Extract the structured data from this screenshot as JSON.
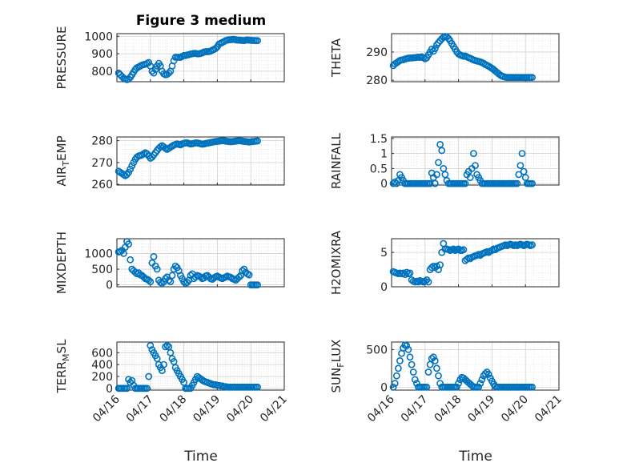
{
  "figure": {
    "title": "Figure 3 medium",
    "marker_color": "#0072BD",
    "x_ticks": [
      "04/16",
      "04/17",
      "04/18",
      "04/19",
      "04/20",
      "04/21"
    ],
    "x_label": "Time"
  },
  "chart_data": [
    {
      "type": "scatter",
      "ylabel": "PRESSURE",
      "yticks": [
        800,
        900,
        1000
      ],
      "ylim": [
        740,
        1015
      ],
      "x": [
        0.05,
        0.1,
        0.15,
        0.2,
        0.25,
        0.3,
        0.35,
        0.4,
        0.45,
        0.5,
        0.55,
        0.6,
        0.65,
        0.7,
        0.75,
        0.8,
        0.85,
        0.9,
        0.95,
        1.0,
        1.05,
        1.1,
        1.15,
        1.2,
        1.25,
        1.3,
        1.35,
        1.4,
        1.45,
        1.5,
        1.55,
        1.6,
        1.65,
        1.7,
        1.75,
        1.8,
        1.85,
        1.9,
        1.95,
        2.0,
        2.05,
        2.1,
        2.15,
        2.2,
        2.25,
        2.3,
        2.35,
        2.4,
        2.45,
        2.5,
        2.55,
        2.6,
        2.65,
        2.7,
        2.75,
        2.8,
        2.85,
        2.9,
        2.95,
        3.0,
        3.05,
        3.1,
        3.15,
        3.2,
        3.25,
        3.3,
        3.35,
        3.4,
        3.45,
        3.5,
        3.55,
        3.6,
        3.65,
        3.7,
        3.75,
        3.8,
        3.85,
        3.9,
        3.95,
        4.0,
        4.05,
        4.1,
        4.15,
        4.2
      ],
      "y": [
        790,
        780,
        770,
        760,
        755,
        752,
        755,
        765,
        780,
        795,
        810,
        820,
        825,
        830,
        835,
        838,
        840,
        845,
        850,
        830,
        800,
        790,
        810,
        830,
        845,
        830,
        800,
        785,
        780,
        782,
        790,
        800,
        830,
        860,
        880,
        880,
        880,
        880,
        885,
        890,
        890,
        893,
        895,
        898,
        900,
        902,
        902,
        900,
        900,
        902,
        905,
        910,
        912,
        912,
        913,
        915,
        920,
        925,
        930,
        940,
        955,
        960,
        965,
        970,
        975,
        978,
        980,
        980,
        982,
        982,
        980,
        978,
        978,
        977,
        976,
        975,
        978,
        979,
        978,
        977,
        976,
        976,
        975,
        975
      ]
    },
    {
      "type": "scatter",
      "ylabel": "THETA",
      "yticks": [
        280,
        290
      ],
      "ylim": [
        279.5,
        296.5
      ],
      "x": [
        0.05,
        0.1,
        0.15,
        0.2,
        0.25,
        0.3,
        0.35,
        0.4,
        0.45,
        0.5,
        0.55,
        0.6,
        0.65,
        0.7,
        0.75,
        0.8,
        0.85,
        0.9,
        0.95,
        1.0,
        1.05,
        1.1,
        1.15,
        1.2,
        1.25,
        1.3,
        1.35,
        1.4,
        1.45,
        1.5,
        1.55,
        1.6,
        1.65,
        1.7,
        1.75,
        1.8,
        1.85,
        1.9,
        1.95,
        2.0,
        2.05,
        2.1,
        2.15,
        2.2,
        2.25,
        2.3,
        2.35,
        2.4,
        2.45,
        2.5,
        2.55,
        2.6,
        2.65,
        2.7,
        2.75,
        2.8,
        2.85,
        2.9,
        2.95,
        3.0,
        3.05,
        3.1,
        3.15,
        3.2,
        3.25,
        3.3,
        3.35,
        3.4,
        3.45,
        3.5,
        3.55,
        3.6,
        3.65,
        3.7,
        3.75,
        3.8,
        3.85,
        3.9,
        3.95,
        4.0,
        4.05,
        4.1,
        4.15,
        4.2
      ],
      "y": [
        285.2,
        285.8,
        286.2,
        286.6,
        287.0,
        287.2,
        287.3,
        287.5,
        287.7,
        287.8,
        287.9,
        287.9,
        288.0,
        288.0,
        288.1,
        288.2,
        288.1,
        288.3,
        288.0,
        287.6,
        288.0,
        289.0,
        290.0,
        291.0,
        290.3,
        291.2,
        292.5,
        293.3,
        294.0,
        294.7,
        295.2,
        295.5,
        295.3,
        294.8,
        294.0,
        293.0,
        292.0,
        291.0,
        290.0,
        289.3,
        289.0,
        288.7,
        288.5,
        288.6,
        288.3,
        288.0,
        287.8,
        287.5,
        287.2,
        287.0,
        286.8,
        286.7,
        286.5,
        286.3,
        286.0,
        285.6,
        285.3,
        285.0,
        284.6,
        284.2,
        283.8,
        283.3,
        282.8,
        282.3,
        281.8,
        281.5,
        281.3,
        281.1,
        281.0,
        281.0,
        281.0,
        281.0,
        281.0,
        281.0,
        281.0,
        281.0,
        281.0,
        281.0,
        281.0,
        281.0,
        281.0,
        281.0,
        281.0,
        281.0
      ]
    },
    {
      "type": "scatter",
      "ylabel": "AIR_TEMP",
      "yticks": [
        260,
        270,
        280
      ],
      "ylim": [
        259.7,
        281.7
      ],
      "x": [
        0.05,
        0.1,
        0.15,
        0.2,
        0.25,
        0.3,
        0.35,
        0.4,
        0.45,
        0.5,
        0.55,
        0.6,
        0.65,
        0.7,
        0.75,
        0.8,
        0.85,
        0.9,
        0.95,
        1.0,
        1.05,
        1.1,
        1.15,
        1.2,
        1.25,
        1.3,
        1.35,
        1.4,
        1.45,
        1.5,
        1.55,
        1.6,
        1.65,
        1.7,
        1.75,
        1.8,
        1.85,
        1.9,
        1.95,
        2.0,
        2.05,
        2.1,
        2.15,
        2.2,
        2.25,
        2.3,
        2.35,
        2.4,
        2.45,
        2.5,
        2.55,
        2.6,
        2.65,
        2.7,
        2.75,
        2.8,
        2.85,
        2.9,
        2.95,
        3.0,
        3.05,
        3.1,
        3.15,
        3.2,
        3.25,
        3.3,
        3.35,
        3.4,
        3.45,
        3.5,
        3.55,
        3.6,
        3.65,
        3.7,
        3.75,
        3.8,
        3.85,
        3.9,
        3.95,
        4.0,
        4.05,
        4.1,
        4.15,
        4.2
      ],
      "y": [
        266,
        265.5,
        265,
        264.5,
        264,
        264.5,
        265.5,
        267,
        268.5,
        270,
        271.5,
        272.5,
        273,
        273.2,
        273.5,
        274,
        274.5,
        274,
        273,
        272,
        272.5,
        273.5,
        274.5,
        275.5,
        276.5,
        277.2,
        277.7,
        277.2,
        276.5,
        276,
        276.5,
        277,
        277.5,
        278,
        278.3,
        278.5,
        278.3,
        278.1,
        278.5,
        278.8,
        279,
        279,
        278.7,
        278.5,
        278.6,
        278.8,
        279,
        279,
        278.8,
        278.6,
        278.4,
        278.5,
        278.7,
        278.9,
        279,
        279.2,
        279.3,
        279.5,
        279.6,
        279.7,
        279.8,
        279.9,
        280,
        280,
        279.8,
        279.7,
        279.6,
        279.5,
        279.6,
        279.7,
        279.8,
        279.9,
        280,
        279.9,
        279.8,
        279.7,
        279.6,
        279.5,
        279.4,
        279.5,
        279.6,
        279.7,
        279.8,
        279.9
      ]
    },
    {
      "type": "scatter",
      "ylabel": "RAINFALL",
      "yticks": [
        0,
        0.5,
        1,
        1.5
      ],
      "ylim": [
        -0.05,
        1.55
      ],
      "x": [
        0.05,
        0.1,
        0.15,
        0.2,
        0.25,
        0.3,
        0.35,
        0.4,
        0.45,
        0.5,
        0.55,
        0.6,
        0.65,
        0.7,
        0.75,
        0.8,
        0.85,
        0.9,
        0.95,
        1.0,
        1.05,
        1.1,
        1.15,
        1.2,
        1.25,
        1.3,
        1.35,
        1.4,
        1.45,
        1.5,
        1.55,
        1.6,
        1.65,
        1.7,
        1.75,
        1.8,
        1.85,
        1.9,
        1.95,
        2.0,
        2.05,
        2.1,
        2.15,
        2.2,
        2.25,
        2.3,
        2.35,
        2.4,
        2.45,
        2.5,
        2.55,
        2.6,
        2.65,
        2.7,
        2.75,
        2.8,
        2.85,
        2.9,
        2.95,
        3.0,
        3.05,
        3.1,
        3.15,
        3.2,
        3.25,
        3.3,
        3.35,
        3.4,
        3.45,
        3.5,
        3.55,
        3.6,
        3.65,
        3.7,
        3.75,
        3.8,
        3.85,
        3.9,
        3.95,
        4.0,
        4.05,
        4.1,
        4.15,
        4.2
      ],
      "y": [
        0,
        0.05,
        0,
        0.1,
        0.3,
        0.2,
        0.1,
        0,
        0,
        0,
        0,
        0,
        0,
        0,
        0,
        0,
        0,
        0,
        0,
        0,
        0,
        0,
        0,
        0.35,
        0.2,
        0,
        0.3,
        0.7,
        1.3,
        1.1,
        0.5,
        0.3,
        0.1,
        0,
        0,
        0,
        0,
        0,
        0,
        0,
        0,
        0,
        0,
        0,
        0.3,
        0.4,
        0.2,
        0.5,
        1.0,
        0.6,
        0.3,
        0.2,
        0.1,
        0,
        0,
        0,
        0,
        0,
        0,
        0,
        0,
        0,
        0,
        0,
        0,
        0,
        0,
        0,
        0,
        0,
        0,
        0,
        0,
        0,
        0,
        0.3,
        0.6,
        1.0,
        0.4,
        0.2,
        0,
        0,
        0,
        0
      ]
    },
    {
      "type": "scatter",
      "ylabel": "MIXDEPTH",
      "yticks": [
        0,
        500,
        1000
      ],
      "ylim": [
        -60,
        1470
      ],
      "x": [
        0.05,
        0.1,
        0.15,
        0.2,
        0.25,
        0.3,
        0.35,
        0.4,
        0.45,
        0.5,
        0.55,
        0.6,
        0.65,
        0.7,
        0.75,
        0.8,
        0.85,
        0.9,
        0.95,
        1.0,
        1.05,
        1.1,
        1.15,
        1.2,
        1.25,
        1.3,
        1.35,
        1.4,
        1.45,
        1.5,
        1.55,
        1.6,
        1.65,
        1.7,
        1.75,
        1.8,
        1.85,
        1.9,
        1.95,
        2.0,
        2.05,
        2.1,
        2.15,
        2.2,
        2.25,
        2.3,
        2.35,
        2.4,
        2.45,
        2.5,
        2.55,
        2.6,
        2.65,
        2.7,
        2.75,
        2.8,
        2.85,
        2.9,
        2.95,
        3.0,
        3.05,
        3.1,
        3.15,
        3.2,
        3.25,
        3.3,
        3.35,
        3.4,
        3.45,
        3.5,
        3.55,
        3.6,
        3.65,
        3.7,
        3.75,
        3.8,
        3.85,
        3.9,
        3.95,
        4.0,
        4.05,
        4.1,
        4.15,
        4.2
      ],
      "y": [
        1050,
        1060,
        1100,
        1000,
        1200,
        1380,
        1300,
        800,
        500,
        450,
        400,
        350,
        380,
        320,
        300,
        250,
        200,
        180,
        150,
        100,
        700,
        900,
        600,
        500,
        150,
        80,
        50,
        100,
        200,
        250,
        150,
        100,
        300,
        500,
        600,
        550,
        450,
        300,
        200,
        100,
        50,
        80,
        150,
        300,
        350,
        200,
        250,
        300,
        280,
        250,
        200,
        220,
        280,
        300,
        250,
        200,
        180,
        220,
        260,
        280,
        250,
        220,
        200,
        230,
        250,
        280,
        260,
        240,
        200,
        180,
        150,
        200,
        250,
        300,
        450,
        500,
        400,
        350,
        320,
        0,
        0,
        0,
        0,
        0
      ]
    },
    {
      "type": "scatter",
      "ylabel": "H2OMIXRA",
      "yticks": [
        0,
        5
      ],
      "ylim": [
        0,
        7
      ],
      "x": [
        0.05,
        0.1,
        0.15,
        0.2,
        0.25,
        0.3,
        0.35,
        0.4,
        0.45,
        0.5,
        0.55,
        0.6,
        0.65,
        0.7,
        0.75,
        0.8,
        0.85,
        0.9,
        0.95,
        1.0,
        1.05,
        1.1,
        1.15,
        1.2,
        1.25,
        1.3,
        1.35,
        1.4,
        1.45,
        1.5,
        1.55,
        1.6,
        1.65,
        1.7,
        1.75,
        1.8,
        1.85,
        1.9,
        1.95,
        2.0,
        2.05,
        2.1,
        2.15,
        2.2,
        2.25,
        2.3,
        2.35,
        2.4,
        2.45,
        2.5,
        2.55,
        2.6,
        2.65,
        2.7,
        2.75,
        2.8,
        2.85,
        2.9,
        2.95,
        3.0,
        3.05,
        3.1,
        3.15,
        3.2,
        3.25,
        3.3,
        3.35,
        3.4,
        3.45,
        3.5,
        3.55,
        3.6,
        3.65,
        3.7,
        3.75,
        3.8,
        3.85,
        3.9,
        3.95,
        4.0,
        4.05,
        4.1,
        4.15,
        4.2
      ],
      "y": [
        2.2,
        2.1,
        2.0,
        1.9,
        2.0,
        1.9,
        2.0,
        1.8,
        2.1,
        1.9,
        2.0,
        1.0,
        0.8,
        0.7,
        0.8,
        0.7,
        0.9,
        0.8,
        0.7,
        0.8,
        1.0,
        0.7,
        2.5,
        2.8,
        3.0,
        2.8,
        3.0,
        2.5,
        3.2,
        5.0,
        6.3,
        5.5,
        5.5,
        5.4,
        5.3,
        5.4,
        5.5,
        5.3,
        5.4,
        5.5,
        5.3,
        5.3,
        5.4,
        3.8,
        4.0,
        4.2,
        4.1,
        4.3,
        4.4,
        4.5,
        4.6,
        4.7,
        4.6,
        4.8,
        4.9,
        5.0,
        5.1,
        5.0,
        5.2,
        5.3,
        5.5,
        5.4,
        5.6,
        5.7,
        5.8,
        5.9,
        6.0,
        6.1,
        6.0,
        6.1,
        6.2,
        6.1,
        6.0,
        6.1,
        6.0,
        6.1,
        6.2,
        6.1,
        6.0,
        6.1,
        6.2,
        6.1,
        6.0,
        6.1
      ]
    },
    {
      "type": "scatter",
      "ylabel": "TERR_MSL",
      "yticks": [
        0,
        200,
        400,
        600
      ],
      "ylim": [
        -30,
        780
      ],
      "x": [
        0.05,
        0.1,
        0.15,
        0.2,
        0.25,
        0.3,
        0.35,
        0.4,
        0.45,
        0.5,
        0.55,
        0.6,
        0.65,
        0.7,
        0.75,
        0.8,
        0.85,
        0.9,
        0.95,
        1.0,
        1.05,
        1.1,
        1.15,
        1.2,
        1.25,
        1.3,
        1.35,
        1.4,
        1.45,
        1.5,
        1.55,
        1.6,
        1.65,
        1.7,
        1.75,
        1.8,
        1.85,
        1.9,
        1.95,
        2.0,
        2.05,
        2.1,
        2.15,
        2.2,
        2.25,
        2.3,
        2.35,
        2.4,
        2.45,
        2.5,
        2.55,
        2.6,
        2.65,
        2.7,
        2.75,
        2.8,
        2.85,
        2.9,
        2.95,
        3.0,
        3.05,
        3.1,
        3.15,
        3.2,
        3.25,
        3.3,
        3.35,
        3.4,
        3.45,
        3.5,
        3.55,
        3.6,
        3.65,
        3.7,
        3.75,
        3.8,
        3.85,
        3.9,
        3.95,
        4.0,
        4.05,
        4.1,
        4.15,
        4.2
      ],
      "y": [
        0,
        0,
        0,
        0,
        0,
        0,
        150,
        100,
        130,
        50,
        0,
        0,
        0,
        0,
        0,
        0,
        0,
        0,
        200,
        720,
        650,
        600,
        550,
        500,
        400,
        350,
        300,
        400,
        700,
        720,
        700,
        600,
        500,
        450,
        350,
        300,
        250,
        200,
        150,
        100,
        0,
        0,
        0,
        0,
        50,
        100,
        150,
        200,
        180,
        160,
        140,
        120,
        110,
        100,
        90,
        80,
        70,
        60,
        60,
        50,
        50,
        40,
        40,
        30,
        30,
        20,
        20,
        20,
        20,
        20,
        20,
        20,
        20,
        20,
        20,
        20,
        20,
        20,
        20,
        20,
        20,
        20,
        20,
        20
      ]
    },
    {
      "type": "scatter",
      "ylabel": "SUN_FLUX",
      "yticks": [
        0,
        500
      ],
      "ylim": [
        -40,
        600
      ],
      "x": [
        0.05,
        0.1,
        0.15,
        0.2,
        0.25,
        0.3,
        0.35,
        0.4,
        0.45,
        0.5,
        0.55,
        0.6,
        0.65,
        0.7,
        0.75,
        0.8,
        0.85,
        0.9,
        0.95,
        1.0,
        1.05,
        1.1,
        1.15,
        1.2,
        1.25,
        1.3,
        1.35,
        1.4,
        1.45,
        1.5,
        1.55,
        1.6,
        1.65,
        1.7,
        1.75,
        1.8,
        1.85,
        1.9,
        1.95,
        2.0,
        2.05,
        2.1,
        2.15,
        2.2,
        2.25,
        2.3,
        2.35,
        2.4,
        2.45,
        2.5,
        2.55,
        2.6,
        2.65,
        2.7,
        2.75,
        2.8,
        2.85,
        2.9,
        2.95,
        3.0,
        3.05,
        3.1,
        3.15,
        3.2,
        3.25,
        3.3,
        3.35,
        3.4,
        3.45,
        3.5,
        3.55,
        3.6,
        3.65,
        3.7,
        3.75,
        3.8,
        3.85,
        3.9,
        3.95,
        4.0,
        4.05,
        4.1,
        4.15,
        4.2
      ],
      "y": [
        0,
        50,
        150,
        250,
        350,
        450,
        520,
        560,
        550,
        500,
        400,
        300,
        200,
        100,
        50,
        0,
        0,
        0,
        0,
        0,
        0,
        200,
        300,
        380,
        400,
        350,
        250,
        150,
        50,
        0,
        0,
        0,
        0,
        0,
        0,
        0,
        0,
        0,
        0,
        50,
        100,
        130,
        120,
        100,
        80,
        60,
        40,
        20,
        0,
        0,
        0,
        0,
        50,
        100,
        150,
        180,
        200,
        170,
        120,
        80,
        40,
        10,
        0,
        0,
        0,
        0,
        0,
        0,
        0,
        0,
        0,
        0,
        0,
        0,
        0,
        0,
        0,
        0,
        0,
        0,
        0,
        0,
        0,
        0
      ]
    }
  ]
}
